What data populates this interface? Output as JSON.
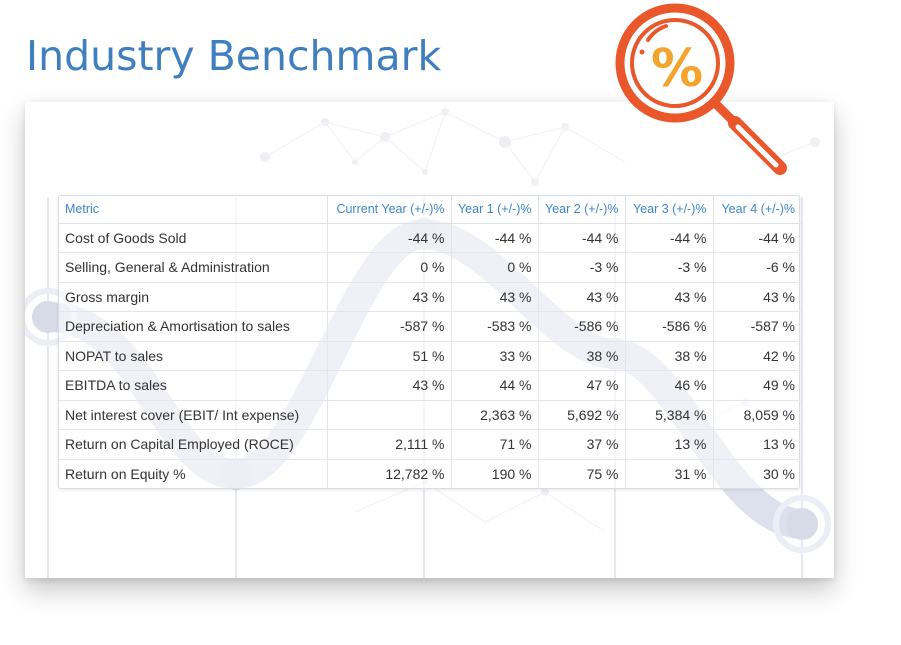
{
  "page": {
    "title": "Industry Benchmark"
  },
  "badge": {
    "icon": "percent-magnifier-icon",
    "symbol": "%",
    "colors": {
      "orange": "#e9572a",
      "yellow": "#f4a42c"
    }
  },
  "benchmark_table": {
    "headers": [
      "Metric",
      "Current Year (+/-)%",
      "Year 1 (+/-)%",
      "Year 2 (+/-)%",
      "Year 3 (+/-)%",
      "Year 4 (+/-)%"
    ],
    "rows": [
      {
        "metric": "Cost of Goods Sold",
        "values": [
          "-44 %",
          "-44 %",
          "-44 %",
          "-44 %",
          "-44 %"
        ]
      },
      {
        "metric": "Selling, General & Administration",
        "values": [
          "0 %",
          "0 %",
          "-3 %",
          "-3 %",
          "-6 %"
        ]
      },
      {
        "metric": "Gross margin",
        "values": [
          "43 %",
          "43 %",
          "43 %",
          "43 %",
          "43 %"
        ]
      },
      {
        "metric": "Depreciation & Amortisation to sales",
        "values": [
          "-587 %",
          "-583 %",
          "-586 %",
          "-586 %",
          "-587 %"
        ]
      },
      {
        "metric": "NOPAT to sales",
        "values": [
          "51 %",
          "33 %",
          "38 %",
          "38 %",
          "42 %"
        ]
      },
      {
        "metric": "EBITDA to sales",
        "values": [
          "43 %",
          "44 %",
          "47 %",
          "46 %",
          "49 %"
        ]
      },
      {
        "metric": "Net interest cover (EBIT/ Int expense)",
        "values": [
          "",
          "2,363 %",
          "5,692 %",
          "5,384 %",
          "8,059 %"
        ]
      },
      {
        "metric": "Return on Capital Employed (ROCE)",
        "values": [
          "2,111 %",
          "71 %",
          "37 %",
          "13 %",
          "13 %"
        ]
      },
      {
        "metric": "Return on Equity %",
        "values": [
          "12,782 %",
          "190 %",
          "75 %",
          "31 %",
          "30 %"
        ]
      }
    ]
  },
  "colors": {
    "title": "#3f7fbf",
    "header_text": "#3e86c8",
    "body_text": "#333333",
    "background_curve": "#dde1ee"
  }
}
